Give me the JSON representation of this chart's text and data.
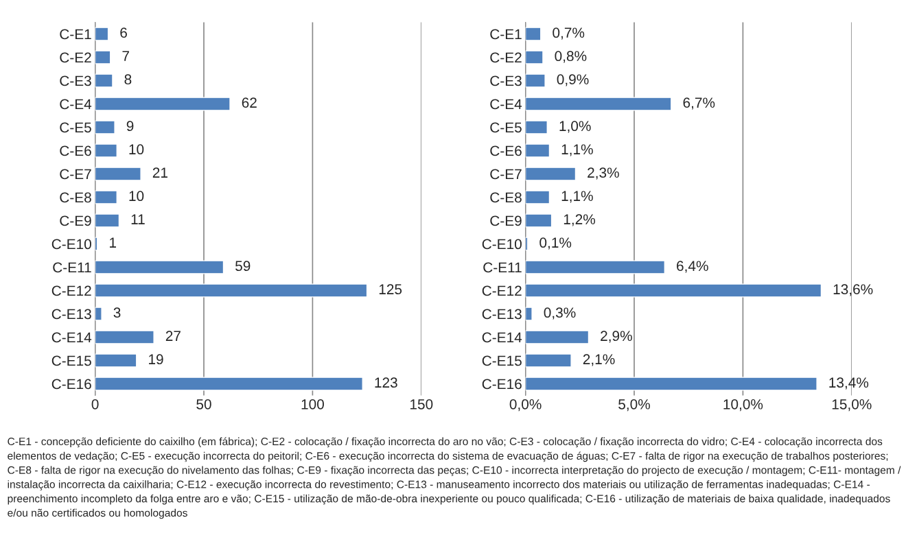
{
  "chart_data": [
    {
      "type": "bar",
      "orientation": "horizontal",
      "categories": [
        "C-E1",
        "C-E2",
        "C-E3",
        "C-E4",
        "C-E5",
        "C-E6",
        "C-E7",
        "C-E8",
        "C-E9",
        "C-E10",
        "C-E11",
        "C-E12",
        "C-E13",
        "C-E14",
        "C-E15",
        "C-E16"
      ],
      "values": [
        6,
        7,
        8,
        62,
        9,
        10,
        21,
        10,
        11,
        1,
        59,
        125,
        3,
        27,
        19,
        123
      ],
      "color": "#4f81bd",
      "xlim": [
        0,
        150
      ],
      "xticks": [
        0,
        50,
        100,
        150
      ],
      "grid": "x",
      "data_labels": true
    },
    {
      "type": "bar",
      "orientation": "horizontal",
      "categories": [
        "C-E1",
        "C-E2",
        "C-E3",
        "C-E4",
        "C-E5",
        "C-E6",
        "C-E7",
        "C-E8",
        "C-E9",
        "C-E10",
        "C-E11",
        "C-E12",
        "C-E13",
        "C-E14",
        "C-E15",
        "C-E16"
      ],
      "values": [
        0.7,
        0.8,
        0.9,
        6.7,
        1.0,
        1.1,
        2.3,
        1.1,
        1.2,
        0.1,
        6.4,
        13.6,
        0.3,
        2.9,
        2.1,
        13.4
      ],
      "color": "#4f81bd",
      "value_labels": [
        "0,7%",
        "0,8%",
        "0,9%",
        "6,7%",
        "1,0%",
        "1,1%",
        "2,3%",
        "1,1%",
        "1,2%",
        "0,1%",
        "6,4%",
        "13,6%",
        "0,3%",
        "2,9%",
        "2,1%",
        "13,4%"
      ],
      "xlim": [
        0,
        15
      ],
      "xticks": [
        {
          "value": 0,
          "label": "0,0%"
        },
        {
          "value": 5,
          "label": "5,0%"
        },
        {
          "value": 10,
          "label": "10,0%"
        },
        {
          "value": 15,
          "label": "15,0%"
        }
      ],
      "grid": "x",
      "annotations": [
        "C-E1 - concepção deficiente do caixilho (em fábrica); C-E2 - colocação / fixação incorrecta do aro no vão; C-E3 - colocação / fixação incorrecta do vidro; C-E4 - colocação incorrecta dos elementos de vedação; C-E5 - execução incorrecta do peitoril; C-E6 - execução incorrecta do sistema de evacuação de águas; C-E7 - falta de rigor na execução de trabalhos posteriores; C-E8 - falta de rigor na execução do nivelamento das folhas; C-E9 - fixação incorrecta das peças; C-E10 - incorrecta interpretação do projecto de execução / montagem; C-E11- montagem / instalação incorrecta da caixilharia; C-E12 - execução incorrecta do revestimento; C-E13 - manuseamento incorrecto dos materiais ou utilização de ferramentas inadequadas; C-E14 - preenchimento incompleto da folga entre aro e vão; C-E15 - utilização de mão-de-obra inexperiente ou pouco qualificada; C-E16 - utilização de materiais de baixa qualidade, inadequados e/ou não certificados ou homologados"
      ]
    }
  ]
}
